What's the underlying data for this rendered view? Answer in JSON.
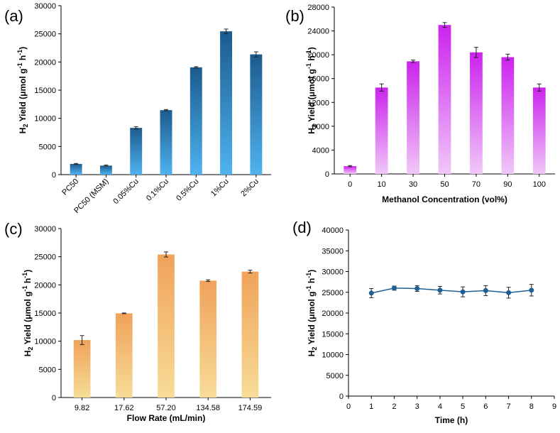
{
  "figure": {
    "colors": {
      "a_bar_top": "#1b5b8e",
      "a_bar_bottom": "#4fb3f0",
      "b_bar_top": "#cc22ee",
      "b_bar_bottom": "#f0c8f8",
      "c_bar_top": "#f0a25a",
      "c_bar_bottom": "#f7dc97",
      "d_line": "#1f5f93",
      "axis": "#000000"
    }
  },
  "chart_data": [
    {
      "panel": "(a)",
      "type": "bar",
      "title": "",
      "xlabel": "",
      "ylabel": "H2 Yield (μmol g-1 h-1)",
      "ylabel_parts": {
        "main": "H",
        "sub": "2",
        "rest1": " Yield (",
        "mu": "μ",
        "rest2": "mol g",
        "sup1": "-1",
        "rest3": " h",
        "sup2": "-1",
        "close": ")"
      },
      "ylim": [
        0,
        30000
      ],
      "yticks": [
        "0",
        "5000",
        "10000",
        "15000",
        "20000",
        "25000",
        "30000"
      ],
      "categories": [
        "PC50",
        "PC50 (MSM)",
        "0.05%Cu",
        "0.1%Cu",
        "0.5%Cu",
        "1%Cu",
        "2%Cu"
      ],
      "values": [
        1900,
        1600,
        8300,
        11450,
        19050,
        25450,
        21350
      ],
      "errors": [
        80,
        100,
        200,
        100,
        120,
        400,
        450
      ],
      "grid": false
    },
    {
      "panel": "(b)",
      "type": "bar",
      "title": "",
      "xlabel": "Methanol Concentration (vol%)",
      "ylabel": "H2 Yield (μmol g-1 h-1)",
      "ylabel_parts": {
        "main": "H",
        "sub": "2",
        "rest1": " Yield (",
        "mu": "μ",
        "rest2": "mol g",
        "sup1": "-1",
        "rest3": " h",
        "sup2": "-1",
        "close": ")"
      },
      "ylim": [
        0,
        28000
      ],
      "yticks": [
        "0",
        "4000",
        "8000",
        "12000",
        "16000",
        "20000",
        "24000",
        "28000"
      ],
      "categories": [
        "0",
        "10",
        "30",
        "50",
        "70",
        "90",
        "100"
      ],
      "values": [
        1300,
        14500,
        18900,
        25000,
        20400,
        19600,
        14500
      ],
      "errors": [
        100,
        600,
        200,
        400,
        850,
        500,
        600
      ],
      "grid": false
    },
    {
      "panel": "(c)",
      "type": "bar",
      "title": "",
      "xlabel": "Flow Rate (mL/min)",
      "ylabel": "H2 Yield (μmol g-1 h-1)",
      "ylabel_parts": {
        "main": "H",
        "sub": "2",
        "rest1": " Yield (",
        "mu": "μ",
        "rest2": "mol g",
        "sup1": "-1",
        "rest3": " h",
        "sup2": "-1",
        "close": ")"
      },
      "ylim": [
        0,
        30000
      ],
      "yticks": [
        "0",
        "5000",
        "10000",
        "15000",
        "20000",
        "25000",
        "30000"
      ],
      "categories": [
        "9.82",
        "17.62",
        "57.20",
        "134.58",
        "174.59"
      ],
      "values": [
        10200,
        14950,
        25400,
        20750,
        22350
      ],
      "errors": [
        800,
        60,
        450,
        150,
        250
      ],
      "grid": false
    },
    {
      "panel": "(d)",
      "type": "line",
      "title": "",
      "xlabel": "Time (h)",
      "ylabel": "H2 Yield (μmol g-1 h-1)",
      "ylabel_parts": {
        "main": "H",
        "sub": "2",
        "rest1": " Yield (",
        "mu": "μ",
        "rest2": "mol g",
        "sup1": "-1",
        "rest3": " h",
        "sup2": "-1",
        "close": ")"
      },
      "xlim": [
        0,
        9
      ],
      "ylim": [
        0,
        40000
      ],
      "xticks": [
        "0",
        "1",
        "2",
        "3",
        "4",
        "5",
        "6",
        "7",
        "8",
        "9"
      ],
      "yticks": [
        "0",
        "5000",
        "10000",
        "15000",
        "20000",
        "25000",
        "30000",
        "35000",
        "40000"
      ],
      "x": [
        1,
        2,
        3,
        4,
        5,
        6,
        7,
        8
      ],
      "y": [
        24800,
        26000,
        25900,
        25500,
        25100,
        25400,
        24900,
        25500
      ],
      "errors": [
        1100,
        500,
        700,
        900,
        1200,
        1200,
        1300,
        1400
      ],
      "grid": false
    }
  ]
}
